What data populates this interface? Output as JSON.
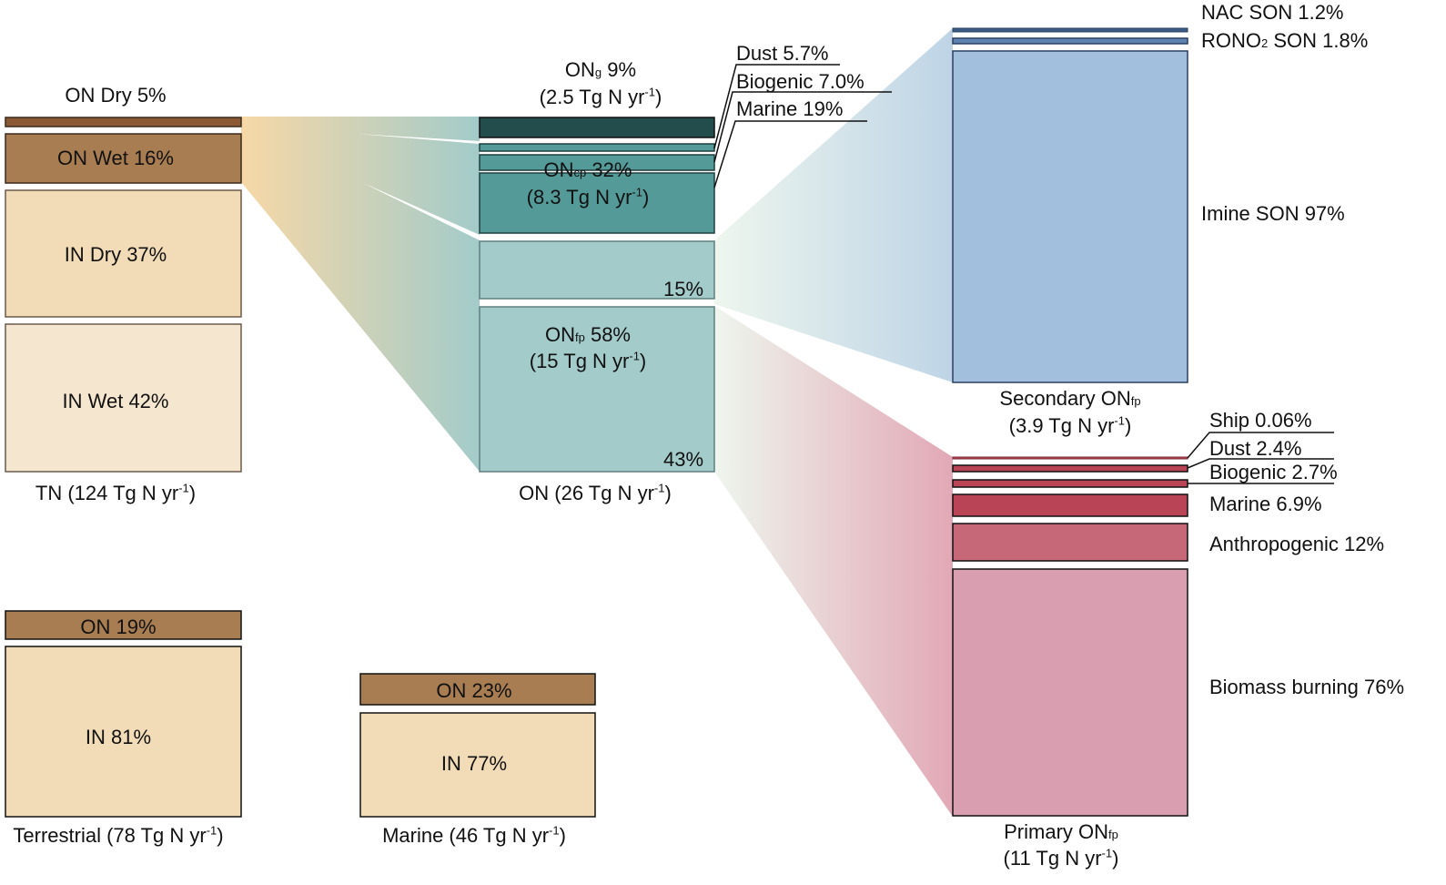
{
  "tn": {
    "on_dry": "ON Dry 5%",
    "on_wet": "ON Wet 16%",
    "in_dry": "IN Dry 37%",
    "in_wet": "IN Wet 42%",
    "total_prefix": "TN (124 Tg N yr",
    "unit_exp": "-1",
    "close": ")"
  },
  "on": {
    "ong_name": "ON",
    "ong_sub": "g",
    "ong_pct": " 9%",
    "ong_flux_prefix": "(2.5 Tg N yr",
    "oncp_name": "ON",
    "oncp_sub": "cp",
    "oncp_pct": " 32%",
    "oncp_flux_prefix": "(8.3 Tg N yr",
    "pct_15": "15%",
    "onfp_name": "ON",
    "onfp_sub": "fp",
    "onfp_pct": " 58%",
    "onfp_flux_prefix": "(15 Tg N yr",
    "pct_43": "43%",
    "total_prefix": "ON (26 Tg N yr",
    "cp_sources": [
      "Dust 5.7%",
      "Biogenic 7.0%",
      "Marine 19%"
    ]
  },
  "terrestrial": {
    "on": "ON 19%",
    "in": "IN 81%",
    "total_prefix": "Terrestrial (78 Tg N yr"
  },
  "marine": {
    "on": "ON 23%",
    "in": "IN 77%",
    "total_prefix": "Marine (46 Tg N yr"
  },
  "secondary": {
    "nac": "NAC SON 1.2%",
    "rono2_prefix": "RONO",
    "rono2_sub": "2",
    "rono2_rest": " SON 1.8%",
    "imine": "Imine SON 97%",
    "title_prefix": "Secondary ON",
    "title_sub": "fp",
    "flux_prefix": "(3.9 Tg N yr"
  },
  "primary": {
    "ship": "Ship 0.06%",
    "dust": "Dust 2.4%",
    "biogenic": "Biogenic 2.7%",
    "marine": "Marine 6.9%",
    "anthropogenic": "Anthropogenic 12%",
    "biomass": "Biomass burning 76%",
    "title_prefix": "Primary ON",
    "title_sub": "fp",
    "flux_prefix": "(11 Tg N yr"
  },
  "colors": {
    "on_dark": "#a97d52",
    "on_dry": "#8b5a34",
    "in_dry": "#f2dcb8",
    "in_wet": "#f5e6d0",
    "ong": "#234c4c",
    "oncp": "#549a98",
    "onfp": "#a3cbca",
    "secondary": "#a2c0de",
    "primary_light": "#d99fb0",
    "primary_mid": "#c66877",
    "primary_dark": "#b84456"
  }
}
